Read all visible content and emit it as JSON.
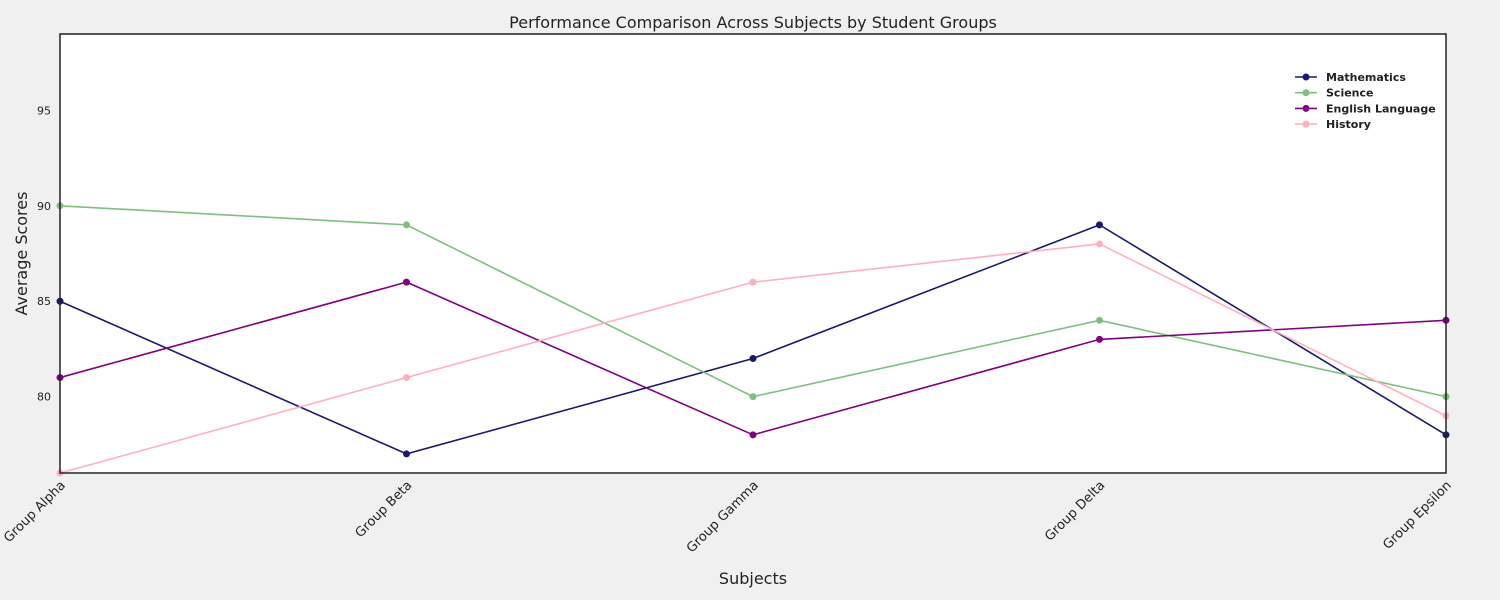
{
  "chart_data": {
    "type": "line",
    "title": "Performance Comparison Across Subjects by Student Groups",
    "xlabel": "Subjects",
    "ylabel": "Average Scores",
    "categories": [
      "Group Alpha",
      "Group Beta",
      "Group Gamma",
      "Group Delta",
      "Group Epsilon"
    ],
    "ylim": [
      76,
      99
    ],
    "yticks": [
      80,
      85,
      90,
      95
    ],
    "grid": false,
    "legend_position": "top-right",
    "series": [
      {
        "name": "Mathematics",
        "color": "#191970",
        "values": [
          85,
          77,
          82,
          89,
          78
        ]
      },
      {
        "name": "Science",
        "color": "#7fbf7f",
        "values": [
          90,
          89,
          80,
          84,
          80
        ]
      },
      {
        "name": "English Language",
        "color": "#800080",
        "values": [
          81,
          86,
          78,
          83,
          84
        ]
      },
      {
        "name": "History",
        "color": "#ffb0c0",
        "values": [
          76,
          81,
          86,
          88,
          79
        ]
      }
    ]
  }
}
